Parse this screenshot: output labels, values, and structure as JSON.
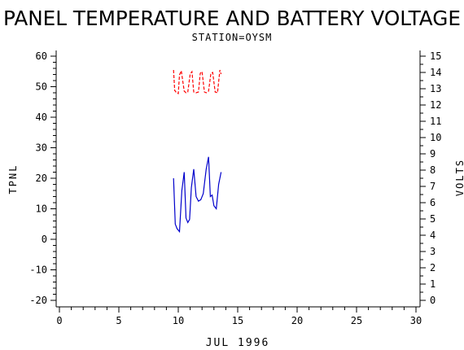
{
  "chart_data": {
    "type": "line",
    "title": "PANEL TEMPERATURE AND BATTERY VOLTAGE",
    "subtitle": "STATION=OYSM",
    "xlabel": "JUL 1996",
    "ylabel_left": "TPNL",
    "ylabel_right": "VOLTS",
    "xlim": [
      0,
      30
    ],
    "ylim_left": [
      -20,
      60
    ],
    "ylim_right": [
      0,
      15
    ],
    "x_ticks": [
      "0",
      "5",
      "10",
      "15",
      "20",
      "25",
      "30"
    ],
    "y_left_ticks": [
      "-20",
      "-10",
      "0",
      "10",
      "20",
      "30",
      "40",
      "50",
      "60"
    ],
    "y_right_ticks": [
      "0",
      "1",
      "2",
      "3",
      "4",
      "5",
      "6",
      "7",
      "8",
      "9",
      "10",
      "11",
      "12",
      "13",
      "14",
      "15"
    ],
    "grid": false,
    "series": [
      {
        "axis": "left",
        "color": "#0000cc",
        "x": [
          9.6,
          9.75,
          9.9,
          10.1,
          10.3,
          10.5,
          10.65,
          10.8,
          10.95,
          11.1,
          11.3,
          11.5,
          11.7,
          11.9,
          12.1,
          12.35,
          12.55,
          12.7,
          12.85,
          13.0,
          13.2,
          13.4,
          13.6
        ],
        "y": [
          20,
          5,
          3.5,
          2.5,
          16,
          22,
          7,
          5.5,
          6.5,
          17,
          23,
          14,
          12.5,
          13,
          15,
          23,
          27,
          14,
          14.5,
          11,
          10,
          18,
          22
        ]
      },
      {
        "axis": "right",
        "color": "#ff0000",
        "x": [
          9.6,
          9.7,
          9.85,
          10.0,
          10.1,
          10.25,
          10.5,
          10.65,
          10.8,
          11.0,
          11.15,
          11.3,
          11.5,
          11.7,
          11.85,
          12.0,
          12.2,
          12.35,
          12.55,
          12.75,
          12.9,
          13.1,
          13.3,
          13.5,
          13.6
        ],
        "y": [
          14.15,
          12.9,
          12.75,
          12.7,
          13.85,
          14.1,
          12.85,
          12.75,
          12.8,
          13.9,
          14.05,
          12.8,
          12.75,
          12.8,
          13.95,
          14.05,
          12.8,
          12.75,
          12.85,
          13.95,
          14.0,
          12.8,
          12.75,
          14.15,
          13.9
        ]
      }
    ]
  }
}
